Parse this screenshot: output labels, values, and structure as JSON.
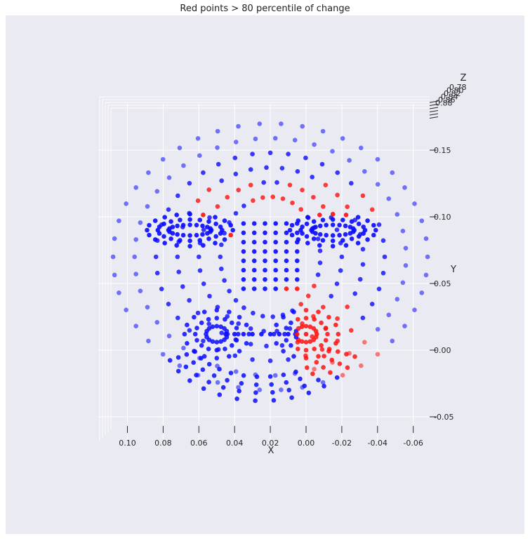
{
  "chart_data": {
    "type": "scatter",
    "title": "Red points > 80 percentile of change",
    "xlabel": "X",
    "ylabel": "Y",
    "zlabel": "Z",
    "projection": "3d",
    "view": "front",
    "xlim": [
      0.11,
      -0.07
    ],
    "ylim": [
      -0.055,
      0.17
    ],
    "x_ticks": [
      "0.10",
      "0.08",
      "0.06",
      "0.04",
      "0.02",
      "0.00",
      "-0.02",
      "-0.04",
      "-0.06"
    ],
    "y_ticks": [
      "-0.05",
      "0.00",
      "0.05",
      "0.10",
      "0.15"
    ],
    "z_ticks": [
      "0.78",
      "0.80",
      "0.82",
      "0.84",
      "0.86",
      "0.88"
    ],
    "colors": {
      "background": "#eaeaf2",
      "grid": "#ffffff",
      "unchanged": "#0a0aff",
      "changed": "#ff1010"
    },
    "series": [
      {
        "name": "",
        "color": "blue",
        "description_points": "face mesh points, change <= 80th percentile",
        "sample_points": [
          [
            0.02,
            0.17
          ],
          [
            0.0,
            0.17
          ],
          [
            0.04,
            0.165
          ],
          [
            -0.02,
            0.165
          ],
          [
            0.09,
            0.12
          ],
          [
            -0.06,
            0.12
          ],
          [
            0.07,
            0.1
          ],
          [
            -0.03,
            0.1
          ],
          [
            0.05,
            0.01
          ],
          [
            0.02,
            0.07
          ],
          [
            0.02,
            -0.04
          ],
          [
            0.06,
            -0.03
          ],
          [
            0.0,
            -0.035
          ]
        ]
      },
      {
        "name": "",
        "color": "red",
        "description_points": "face mesh points, change > 80th percentile",
        "sample_points": [
          [
            0.06,
            0.12
          ],
          [
            0.03,
            0.11
          ],
          [
            0.0,
            0.11
          ],
          [
            -0.03,
            0.12
          ],
          [
            0.04,
            0.07
          ],
          [
            0.0,
            0.07
          ],
          [
            0.01,
            0.04
          ],
          [
            0.0,
            0.01
          ],
          [
            -0.01,
            0.03
          ],
          [
            -0.02,
            -0.01
          ],
          [
            -0.04,
            0.0
          ]
        ]
      }
    ]
  }
}
